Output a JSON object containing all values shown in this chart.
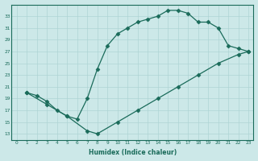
{
  "line1_x": [
    1,
    2,
    3,
    4,
    5,
    6,
    7,
    8,
    9,
    10,
    11,
    12,
    13,
    14,
    15,
    16,
    17,
    18,
    19,
    20,
    21,
    22,
    23
  ],
  "line1_y": [
    20,
    19.5,
    18.5,
    17,
    16,
    15.5,
    19,
    24,
    28,
    30,
    31,
    32,
    32.5,
    33,
    34,
    34,
    33.5,
    32,
    32,
    31,
    28,
    27.5,
    27
  ],
  "line2_x": [
    1,
    3,
    5,
    7,
    8,
    10,
    12,
    14,
    16,
    18,
    20,
    22,
    23
  ],
  "line2_y": [
    20,
    18,
    16,
    13.5,
    13,
    15,
    17,
    19,
    21,
    23,
    25,
    26.5,
    27
  ],
  "line_color": "#1a6b5a",
  "marker": "D",
  "marker_size": 2.5,
  "bg_color": "#cce8e8",
  "grid_color": "#aed4d4",
  "xlabel": "Humidex (Indice chaleur)",
  "xlim": [
    -0.5,
    23.5
  ],
  "ylim": [
    12,
    35
  ],
  "yticks": [
    13,
    15,
    17,
    19,
    21,
    23,
    25,
    27,
    29,
    31,
    33
  ],
  "xticks": [
    0,
    1,
    2,
    3,
    4,
    5,
    6,
    7,
    8,
    9,
    10,
    11,
    12,
    13,
    14,
    15,
    16,
    17,
    18,
    19,
    20,
    21,
    22,
    23
  ]
}
